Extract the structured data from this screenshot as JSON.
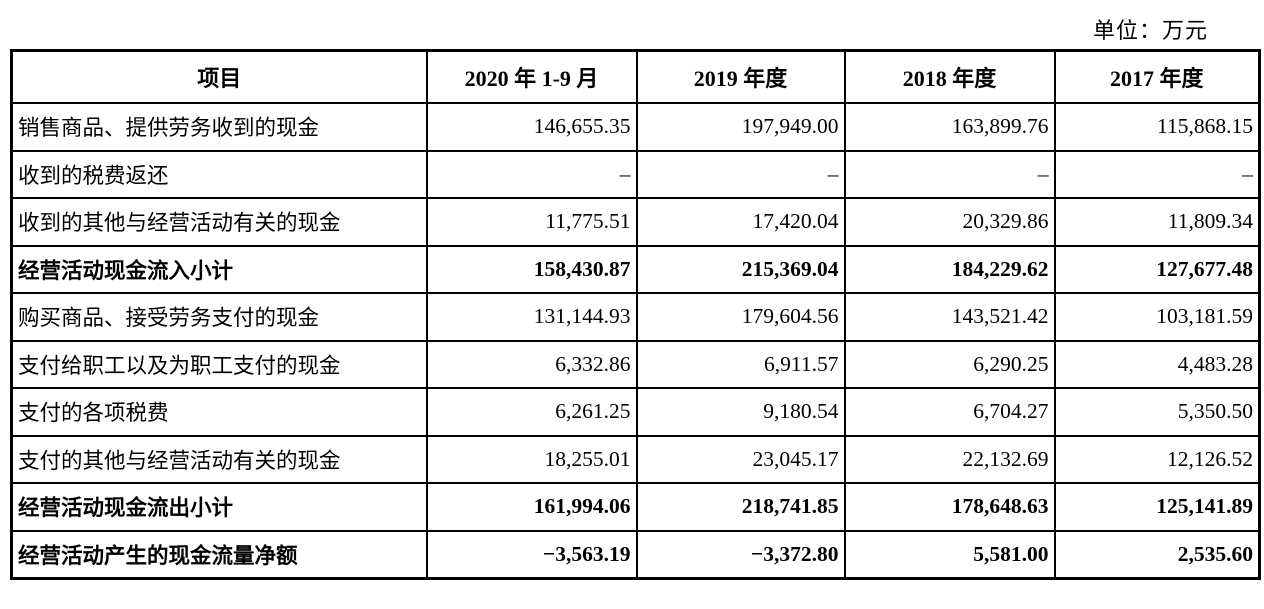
{
  "unit_label": "单位：万元",
  "table": {
    "columns": [
      "项目",
      "2020 年 1-9 月",
      "2019 年度",
      "2018 年度",
      "2017 年度"
    ],
    "rows": [
      {
        "label": "销售商品、提供劳务收到的现金",
        "bold": false,
        "values": [
          "146,655.35",
          "197,949.00",
          "163,899.76",
          "115,868.15"
        ]
      },
      {
        "label": "收到的税费返还",
        "bold": false,
        "values": [
          "–",
          "–",
          "–",
          "–"
        ]
      },
      {
        "label": "收到的其他与经营活动有关的现金",
        "bold": false,
        "values": [
          "11,775.51",
          "17,420.04",
          "20,329.86",
          "11,809.34"
        ]
      },
      {
        "label": "经营活动现金流入小计",
        "bold": true,
        "values": [
          "158,430.87",
          "215,369.04",
          "184,229.62",
          "127,677.48"
        ]
      },
      {
        "label": "购买商品、接受劳务支付的现金",
        "bold": false,
        "values": [
          "131,144.93",
          "179,604.56",
          "143,521.42",
          "103,181.59"
        ]
      },
      {
        "label": "支付给职工以及为职工支付的现金",
        "bold": false,
        "values": [
          "6,332.86",
          "6,911.57",
          "6,290.25",
          "4,483.28"
        ]
      },
      {
        "label": "支付的各项税费",
        "bold": false,
        "values": [
          "6,261.25",
          "9,180.54",
          "6,704.27",
          "5,350.50"
        ]
      },
      {
        "label": "支付的其他与经营活动有关的现金",
        "bold": false,
        "values": [
          "18,255.01",
          "23,045.17",
          "22,132.69",
          "12,126.52"
        ]
      },
      {
        "label": "经营活动现金流出小计",
        "bold": true,
        "values": [
          "161,994.06",
          "218,741.85",
          "178,648.63",
          "125,141.89"
        ]
      },
      {
        "label": "经营活动产生的现金流量净额",
        "bold": true,
        "values": [
          "−3,563.19",
          "−3,372.80",
          "5,581.00",
          "2,535.60"
        ]
      }
    ]
  }
}
